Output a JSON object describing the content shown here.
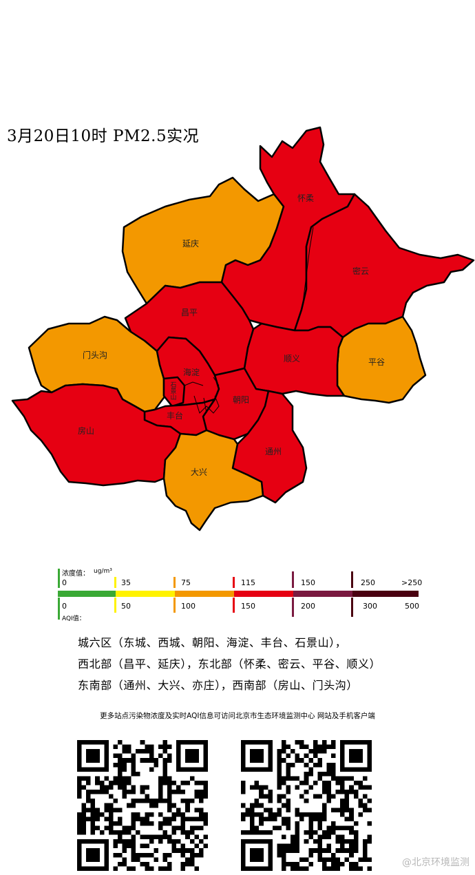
{
  "title": "3月20日10时 PM2.5实况",
  "districts": [
    {
      "name": "怀柔",
      "level": "red"
    },
    {
      "name": "延庆",
      "level": "orange"
    },
    {
      "name": "密云",
      "level": "red"
    },
    {
      "name": "昌平",
      "level": "red"
    },
    {
      "name": "门头沟",
      "level": "orange"
    },
    {
      "name": "顺义",
      "level": "red"
    },
    {
      "name": "平谷",
      "level": "orange"
    },
    {
      "name": "海淀",
      "level": "red"
    },
    {
      "name": "石景山",
      "level": "red"
    },
    {
      "name": "朝阳",
      "level": "red"
    },
    {
      "name": "丰台",
      "level": "red"
    },
    {
      "name": "房山",
      "level": "red"
    },
    {
      "name": "通州",
      "level": "red"
    },
    {
      "name": "大兴",
      "level": "orange"
    }
  ],
  "colors": {
    "red": "#e60012",
    "orange": "#f39800",
    "green": "#3aa935",
    "yellow": "#fff200",
    "purple": "#7a1a40",
    "maroon": "#4a0010"
  },
  "legend": {
    "conc_label": "浓度值：",
    "conc_unit": "ug/m³",
    "aqi_label": "AQI值：",
    "conc_values": [
      "0",
      "35",
      "75",
      "115",
      "150",
      "250",
      ">250"
    ],
    "aqi_values": [
      "0",
      "50",
      "100",
      "150",
      "200",
      "300",
      "500"
    ],
    "segment_colors": [
      "#3aa935",
      "#fff200",
      "#f39800",
      "#e60012",
      "#7a1a40",
      "#4a0010"
    ]
  },
  "area_notes": [
    "城六区（东城、西城、朝阳、海淀、丰台、石景山），",
    "西北部（昌平、延庆），东北部（怀柔、密云、平谷、顺义）",
    "东南部（通州、大兴、亦庄），西南部（房山、门头沟）"
  ],
  "more_info": "更多站点污染物浓度及实时AQI信息可访问北京市生态环境监测中心 网站及手机客户端",
  "qr_codes": [
    "website-qr-code",
    "app-qr-code"
  ],
  "watermark": "@北京环境监测"
}
